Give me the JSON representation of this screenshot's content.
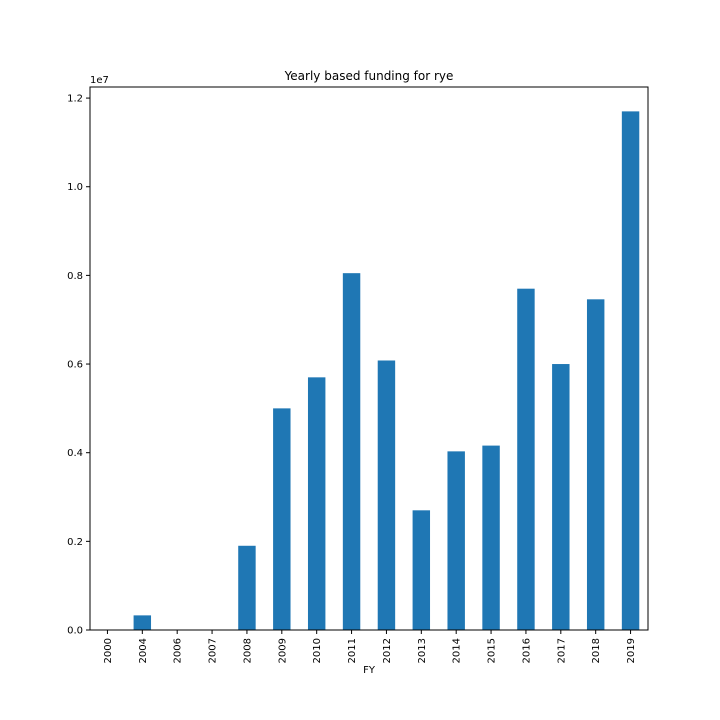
{
  "chart_data": {
    "type": "bar",
    "title": "Yearly based funding for rye",
    "xlabel": "FY",
    "ylabel": "",
    "y_offset_label": "1e7",
    "y_scale": 10000000,
    "categories": [
      "2000",
      "2004",
      "2006",
      "2007",
      "2008",
      "2009",
      "2010",
      "2011",
      "2012",
      "2013",
      "2014",
      "2015",
      "2016",
      "2017",
      "2018",
      "2019"
    ],
    "values": [
      0,
      330000,
      0,
      0,
      1900000,
      5000000,
      5700000,
      8050000,
      6080000,
      2700000,
      4030000,
      4160000,
      7700000,
      6000000,
      7460000,
      11700000
    ],
    "y_ticks": [
      0.0,
      0.2,
      0.4,
      0.6,
      0.8,
      1.0,
      1.2
    ],
    "y_tick_labels": [
      "0.0",
      "0.2",
      "0.4",
      "0.6",
      "0.8",
      "1.0",
      "1.2"
    ],
    "ylim": [
      0,
      12250000
    ],
    "grid": false,
    "legend": "none",
    "bar_color": "#1f77b4"
  }
}
